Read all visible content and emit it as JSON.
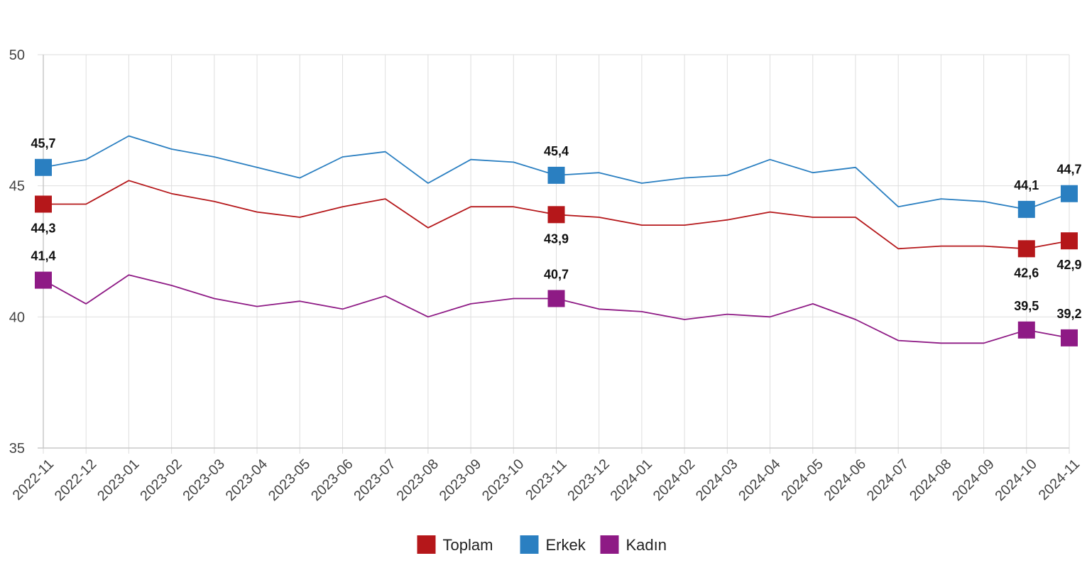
{
  "chart_data": {
    "type": "line",
    "title": "",
    "xlabel": "",
    "ylabel": "",
    "ylim": [
      35,
      50
    ],
    "yticks": [
      35,
      40,
      45,
      50
    ],
    "grid": true,
    "legend_position": "bottom-center",
    "categories": [
      "2022-11",
      "2022-12",
      "2023-01",
      "2023-02",
      "2023-03",
      "2023-04",
      "2023-05",
      "2023-06",
      "2023-07",
      "2023-08",
      "2023-09",
      "2023-10",
      "2023-11",
      "2023-12",
      "2024-01",
      "2024-02",
      "2024-03",
      "2024-04",
      "2024-05",
      "2024-06",
      "2024-07",
      "2024-08",
      "2024-09",
      "2024-10",
      "2024-11"
    ],
    "series": [
      {
        "name": "Toplam",
        "color": "#b5171a",
        "values": [
          44.3,
          44.3,
          45.2,
          44.7,
          44.4,
          44.0,
          43.8,
          44.2,
          44.5,
          43.4,
          44.2,
          44.2,
          43.9,
          43.8,
          43.5,
          43.5,
          43.7,
          44.0,
          43.8,
          43.8,
          42.6,
          42.7,
          42.7,
          42.6,
          42.9
        ],
        "labels": [
          {
            "index": 0,
            "text": "44,3",
            "position": "below"
          },
          {
            "index": 12,
            "text": "43,9",
            "position": "below"
          },
          {
            "index": 23,
            "text": "42,6",
            "position": "below"
          },
          {
            "index": 24,
            "text": "42,9",
            "position": "below"
          }
        ]
      },
      {
        "name": "Erkek",
        "color": "#2a7fc1",
        "values": [
          45.7,
          46.0,
          46.9,
          46.4,
          46.1,
          45.7,
          45.3,
          46.1,
          46.3,
          45.1,
          46.0,
          45.9,
          45.4,
          45.5,
          45.1,
          45.3,
          45.4,
          46.0,
          45.5,
          45.7,
          44.2,
          44.5,
          44.4,
          44.1,
          44.7
        ],
        "labels": [
          {
            "index": 0,
            "text": "45,7",
            "position": "above"
          },
          {
            "index": 12,
            "text": "45,4",
            "position": "above"
          },
          {
            "index": 23,
            "text": "44,1",
            "position": "above"
          },
          {
            "index": 24,
            "text": "44,7",
            "position": "above"
          }
        ]
      },
      {
        "name": "Kadın",
        "color": "#8e1a85",
        "values": [
          41.4,
          40.5,
          41.6,
          41.2,
          40.7,
          40.4,
          40.6,
          40.3,
          40.8,
          40.0,
          40.5,
          40.7,
          40.7,
          40.3,
          40.2,
          39.9,
          40.1,
          40.0,
          40.5,
          39.9,
          39.1,
          39.0,
          39.0,
          39.5,
          39.2
        ],
        "labels": [
          {
            "index": 0,
            "text": "41,4",
            "position": "above"
          },
          {
            "index": 12,
            "text": "40,7",
            "position": "above"
          },
          {
            "index": 23,
            "text": "39,5",
            "position": "above"
          },
          {
            "index": 24,
            "text": "39,2",
            "position": "above"
          }
        ]
      }
    ]
  }
}
